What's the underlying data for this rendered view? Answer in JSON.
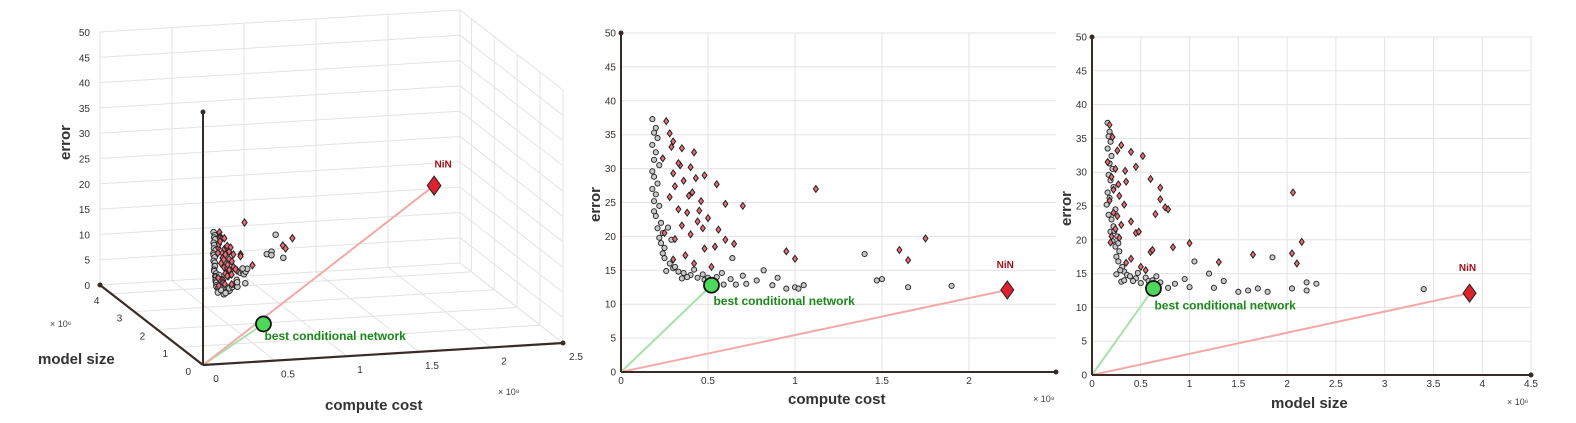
{
  "colors": {
    "gray_marker": "#c8c8c8",
    "red_marker": "#f06a74",
    "nin_marker": "#e0202e",
    "best_marker": "#4cd85a",
    "green_line": "#a6e3a9",
    "red_line": "#f2aaa8",
    "grid": "#e3e3e3",
    "axis": "#3a2a26"
  },
  "chart_data": [
    {
      "type": "scatter",
      "panel": "3d",
      "xlabel": "compute cost",
      "ylabel": "model size",
      "zlabel": "error",
      "x_exponent": "× 10⁸",
      "y_exponent": "× 10⁶",
      "x_ticks": [
        "0",
        "0.5",
        "1",
        "1.5",
        "2",
        "2.5"
      ],
      "y_ticks": [
        "0",
        "1",
        "2",
        "3",
        "4"
      ],
      "z_ticks": [
        "0",
        "5",
        "10",
        "15",
        "20",
        "25",
        "30",
        "35",
        "40",
        "45",
        "50"
      ],
      "xlim": [
        0,
        2.5
      ],
      "ylim": [
        0,
        4.5
      ],
      "zlim": [
        0,
        50
      ],
      "grid": true
    },
    {
      "type": "scatter",
      "panel": "cost",
      "xlabel": "compute cost",
      "ylabel": "error",
      "x_exponent": "× 10⁸",
      "x_ticks": [
        "0",
        "0.5",
        "1",
        "1.5",
        "2"
      ],
      "y_ticks": [
        "0",
        "5",
        "10",
        "15",
        "20",
        "25",
        "30",
        "35",
        "40",
        "45",
        "50"
      ],
      "xlim": [
        0,
        2.5
      ],
      "ylim": [
        0,
        50
      ],
      "grid": true
    },
    {
      "type": "scatter",
      "panel": "size",
      "xlabel": "model size",
      "ylabel": "error",
      "x_exponent": "× 10⁶",
      "x_ticks": [
        "0",
        "0.5",
        "1",
        "1.5",
        "2",
        "2.5",
        "3",
        "3.5",
        "4",
        "4.5"
      ],
      "y_ticks": [
        "0",
        "5",
        "10",
        "15",
        "20",
        "25",
        "30",
        "35",
        "40",
        "45",
        "50"
      ],
      "xlim": [
        0,
        4.5
      ],
      "ylim": [
        0,
        50
      ],
      "grid": true
    }
  ],
  "shared_points": {
    "columns": [
      "compute_cost_e8",
      "model_size_e6",
      "error"
    ],
    "gray": [
      [
        0.18,
        0.16,
        37.3
      ],
      [
        0.2,
        0.18,
        36.0
      ],
      [
        0.19,
        0.17,
        35.3
      ],
      [
        0.21,
        0.19,
        34.5
      ],
      [
        0.18,
        0.16,
        33.5
      ],
      [
        0.2,
        0.2,
        32.4
      ],
      [
        0.19,
        0.18,
        31.3
      ],
      [
        0.22,
        0.21,
        30.5
      ],
      [
        0.18,
        0.17,
        29.6
      ],
      [
        0.19,
        0.19,
        28.8
      ],
      [
        0.21,
        0.22,
        27.8
      ],
      [
        0.18,
        0.16,
        27.0
      ],
      [
        0.2,
        0.18,
        26.2
      ],
      [
        0.19,
        0.15,
        25.2
      ],
      [
        0.22,
        0.24,
        24.5
      ],
      [
        0.19,
        0.17,
        23.7
      ],
      [
        0.2,
        0.2,
        23.0
      ],
      [
        0.23,
        0.22,
        22.0
      ],
      [
        0.21,
        0.19,
        21.2
      ],
      [
        0.24,
        0.26,
        20.5
      ],
      [
        0.22,
        0.21,
        19.8
      ],
      [
        0.23,
        0.24,
        19.0
      ],
      [
        0.25,
        0.28,
        18.3
      ],
      [
        0.24,
        0.25,
        17.5
      ],
      [
        0.25,
        0.27,
        16.8
      ],
      [
        0.28,
        0.31,
        16.0
      ],
      [
        0.3,
        0.33,
        15.3
      ],
      [
        0.33,
        0.36,
        14.8
      ],
      [
        0.36,
        0.39,
        14.6
      ],
      [
        0.4,
        0.45,
        14.3
      ],
      [
        0.44,
        0.42,
        13.9
      ],
      [
        0.48,
        0.5,
        13.6
      ],
      [
        0.42,
        0.47,
        15.1
      ],
      [
        0.47,
        0.55,
        14.4
      ],
      [
        0.5,
        0.58,
        13.9
      ],
      [
        0.55,
        0.62,
        14.0
      ],
      [
        0.58,
        0.66,
        14.6
      ],
      [
        0.63,
        0.7,
        13.7
      ],
      [
        0.66,
        0.78,
        12.9
      ],
      [
        0.7,
        0.95,
        14.2
      ],
      [
        0.72,
        1.0,
        13.0
      ],
      [
        0.78,
        0.85,
        13.5
      ],
      [
        0.82,
        1.2,
        15.0
      ],
      [
        0.9,
        1.35,
        13.9
      ],
      [
        0.95,
        1.5,
        12.3
      ],
      [
        1.0,
        1.6,
        12.5
      ],
      [
        1.05,
        1.7,
        12.8
      ],
      [
        1.4,
        1.85,
        17.4
      ],
      [
        1.47,
        2.3,
        13.5
      ],
      [
        1.5,
        2.2,
        13.7
      ],
      [
        1.65,
        2.2,
        12.5
      ],
      [
        1.9,
        3.4,
        12.7
      ],
      [
        0.35,
        0.3,
        13.8
      ],
      [
        0.38,
        0.33,
        14.0
      ],
      [
        0.26,
        0.25,
        14.9
      ],
      [
        0.31,
        0.29,
        15.5
      ],
      [
        0.64,
        1.05,
        16.8
      ],
      [
        0.59,
        1.25,
        12.9
      ],
      [
        1.02,
        1.8,
        12.3
      ],
      [
        0.87,
        2.05,
        12.8
      ],
      [
        0.27,
        0.23,
        21.3
      ],
      [
        0.29,
        0.27,
        19.5
      ]
    ],
    "red": [
      [
        0.26,
        0.18,
        37.0
      ],
      [
        0.28,
        0.21,
        35.2
      ],
      [
        0.3,
        0.3,
        34.0
      ],
      [
        0.35,
        0.4,
        33.0
      ],
      [
        0.42,
        0.52,
        32.4
      ],
      [
        0.24,
        0.16,
        31.5
      ],
      [
        0.34,
        0.24,
        30.5
      ],
      [
        0.4,
        0.34,
        30.2
      ],
      [
        0.3,
        0.2,
        29.3
      ],
      [
        0.48,
        0.6,
        29.0
      ],
      [
        0.36,
        0.27,
        28.2
      ],
      [
        0.31,
        0.22,
        27.4
      ],
      [
        0.55,
        0.7,
        27.7
      ],
      [
        0.41,
        0.28,
        26.5
      ],
      [
        0.28,
        0.18,
        25.8
      ],
      [
        0.46,
        0.33,
        25.2
      ],
      [
        0.6,
        0.75,
        24.8
      ],
      [
        0.33,
        0.22,
        24.0
      ],
      [
        0.38,
        0.26,
        23.5
      ],
      [
        0.5,
        0.4,
        22.7
      ],
      [
        0.44,
        0.3,
        22.2
      ],
      [
        0.35,
        0.24,
        21.6
      ],
      [
        0.56,
        0.45,
        21.0
      ],
      [
        0.4,
        0.28,
        20.3
      ],
      [
        0.31,
        0.19,
        19.6
      ],
      [
        0.65,
        0.83,
        18.9
      ],
      [
        0.48,
        0.6,
        18.2
      ],
      [
        0.37,
        0.4,
        17.2
      ],
      [
        0.3,
        0.35,
        16.6
      ],
      [
        0.42,
        0.5,
        16.0
      ],
      [
        0.52,
        0.55,
        15.5
      ],
      [
        1.12,
        2.06,
        27.0
      ],
      [
        0.7,
        0.78,
        24.5
      ],
      [
        0.95,
        1.65,
        17.8
      ],
      [
        1.0,
        1.3,
        16.7
      ],
      [
        1.6,
        2.05,
        18.0
      ],
      [
        1.65,
        2.1,
        16.5
      ],
      [
        1.75,
        2.15,
        19.7
      ],
      [
        0.33,
        0.45,
        30.8
      ],
      [
        0.45,
        0.65,
        23.8
      ],
      [
        0.25,
        0.2,
        20.5
      ],
      [
        0.39,
        0.7,
        26.0
      ],
      [
        0.6,
        1.0,
        19.5
      ],
      [
        0.43,
        0.35,
        28.6
      ],
      [
        0.47,
        0.48,
        21.2
      ],
      [
        0.54,
        0.62,
        18.5
      ],
      [
        0.29,
        0.26,
        33.2
      ]
    ],
    "best_network": [
      0.52,
      0.63,
      12.8
    ],
    "nin": [
      2.22,
      3.87,
      12.1
    ],
    "best_label": "best conditional network",
    "nin_label": "NiN"
  }
}
